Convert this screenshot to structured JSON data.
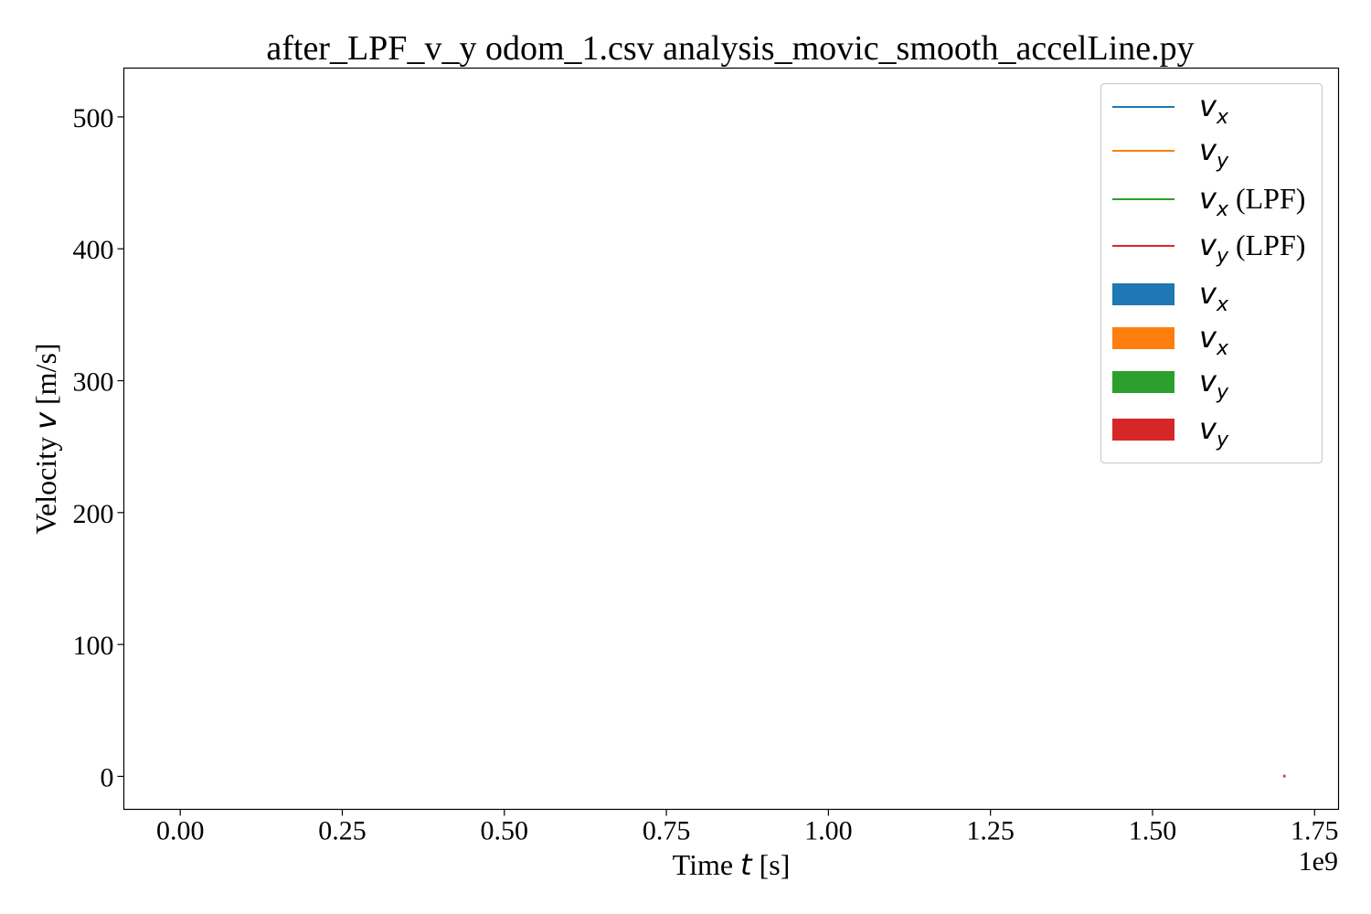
{
  "chart_data": {
    "type": "line",
    "title": "after_LPF_v_y odom_1.csv analysis_movic_smooth_accelLine.py",
    "xlabel": {
      "prefix": "Time ",
      "symbol": "t",
      "suffix": " [s]"
    },
    "ylabel": {
      "prefix": "Velocity ",
      "symbol": "v",
      "suffix": " [m/s]"
    },
    "x_offset_label": "1e9",
    "xlim": [
      -0.087,
      1.787
    ],
    "ylim": [
      -25,
      537
    ],
    "xticks": [
      0.0,
      0.25,
      0.5,
      0.75,
      1.0,
      1.25,
      1.5,
      1.75
    ],
    "xtick_labels": [
      "0.00",
      "0.25",
      "0.50",
      "0.75",
      "1.00",
      "1.25",
      "1.50",
      "1.75"
    ],
    "yticks": [
      0,
      100,
      200,
      300,
      400,
      500
    ],
    "ytick_labels": [
      "0",
      "100",
      "200",
      "300",
      "400",
      "500"
    ],
    "grid": false,
    "legend_position": "top-right",
    "series": [
      {
        "name": "v_x",
        "label_sym": "v",
        "label_sub": "x",
        "label_suffix": "",
        "color": "#1f77b4",
        "kind": "line",
        "x": [
          1.7035
        ],
        "y": [
          0.3
        ]
      },
      {
        "name": "v_y",
        "label_sym": "v",
        "label_sub": "y",
        "label_suffix": "",
        "color": "#ff7f0e",
        "kind": "line",
        "x": [
          1.7035
        ],
        "y": [
          0.1
        ]
      },
      {
        "name": "v_x (LPF)",
        "label_sym": "v",
        "label_sub": "x",
        "label_suffix": " (LPF)",
        "color": "#2ca02c",
        "kind": "line",
        "x": [
          1.7035
        ],
        "y": [
          0.3
        ]
      },
      {
        "name": "v_y (LPF)",
        "label_sym": "v",
        "label_sub": "y",
        "label_suffix": " (LPF)",
        "color": "#d62728",
        "kind": "line",
        "x": [
          1.7035
        ],
        "y": [
          0.1
        ]
      },
      {
        "name": "v_x",
        "label_sym": "v",
        "label_sub": "x",
        "label_suffix": "",
        "color": "#1f77b4",
        "kind": "fill",
        "x": [],
        "y": []
      },
      {
        "name": "v_x",
        "label_sym": "v",
        "label_sub": "x",
        "label_suffix": "",
        "color": "#ff7f0e",
        "kind": "fill",
        "x": [],
        "y": []
      },
      {
        "name": "v_y",
        "label_sym": "v",
        "label_sub": "y",
        "label_suffix": "",
        "color": "#2ca02c",
        "kind": "fill",
        "x": [],
        "y": []
      },
      {
        "name": "v_y",
        "label_sym": "v",
        "label_sub": "y",
        "label_suffix": "",
        "color": "#d62728",
        "kind": "fill",
        "x": [],
        "y": []
      }
    ]
  }
}
